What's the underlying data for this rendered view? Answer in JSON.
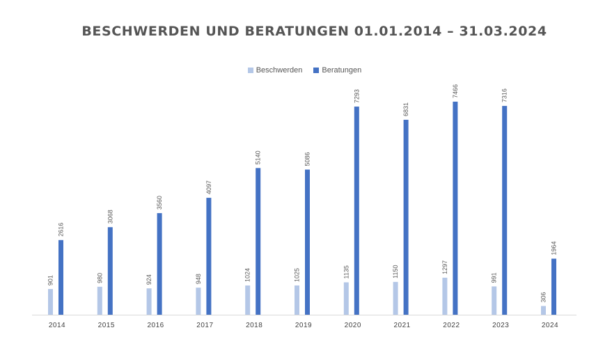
{
  "chart_data": {
    "type": "bar",
    "title": "BESCHWERDEN UND BERATUNGEN 01.01.2014 – 31.03.2024",
    "xlabel": "",
    "ylabel": "",
    "categories": [
      "2014",
      "2015",
      "2016",
      "2017",
      "2018",
      "2019",
      "2020",
      "2021",
      "2022",
      "2023",
      "2024"
    ],
    "series": [
      {
        "name": "Beschwerden",
        "color": "#b4c7e7",
        "values": [
          901,
          980,
          924,
          948,
          1024,
          1025,
          1135,
          1150,
          1297,
          991,
          306
        ]
      },
      {
        "name": "Beratungen",
        "color": "#4472c4",
        "values": [
          2616,
          3068,
          3560,
          4097,
          5140,
          5086,
          7293,
          6831,
          7466,
          7316,
          1964
        ]
      }
    ],
    "ylim": [
      0,
      7466
    ],
    "grid": false,
    "legend_position": "top-center",
    "data_labels": true
  }
}
